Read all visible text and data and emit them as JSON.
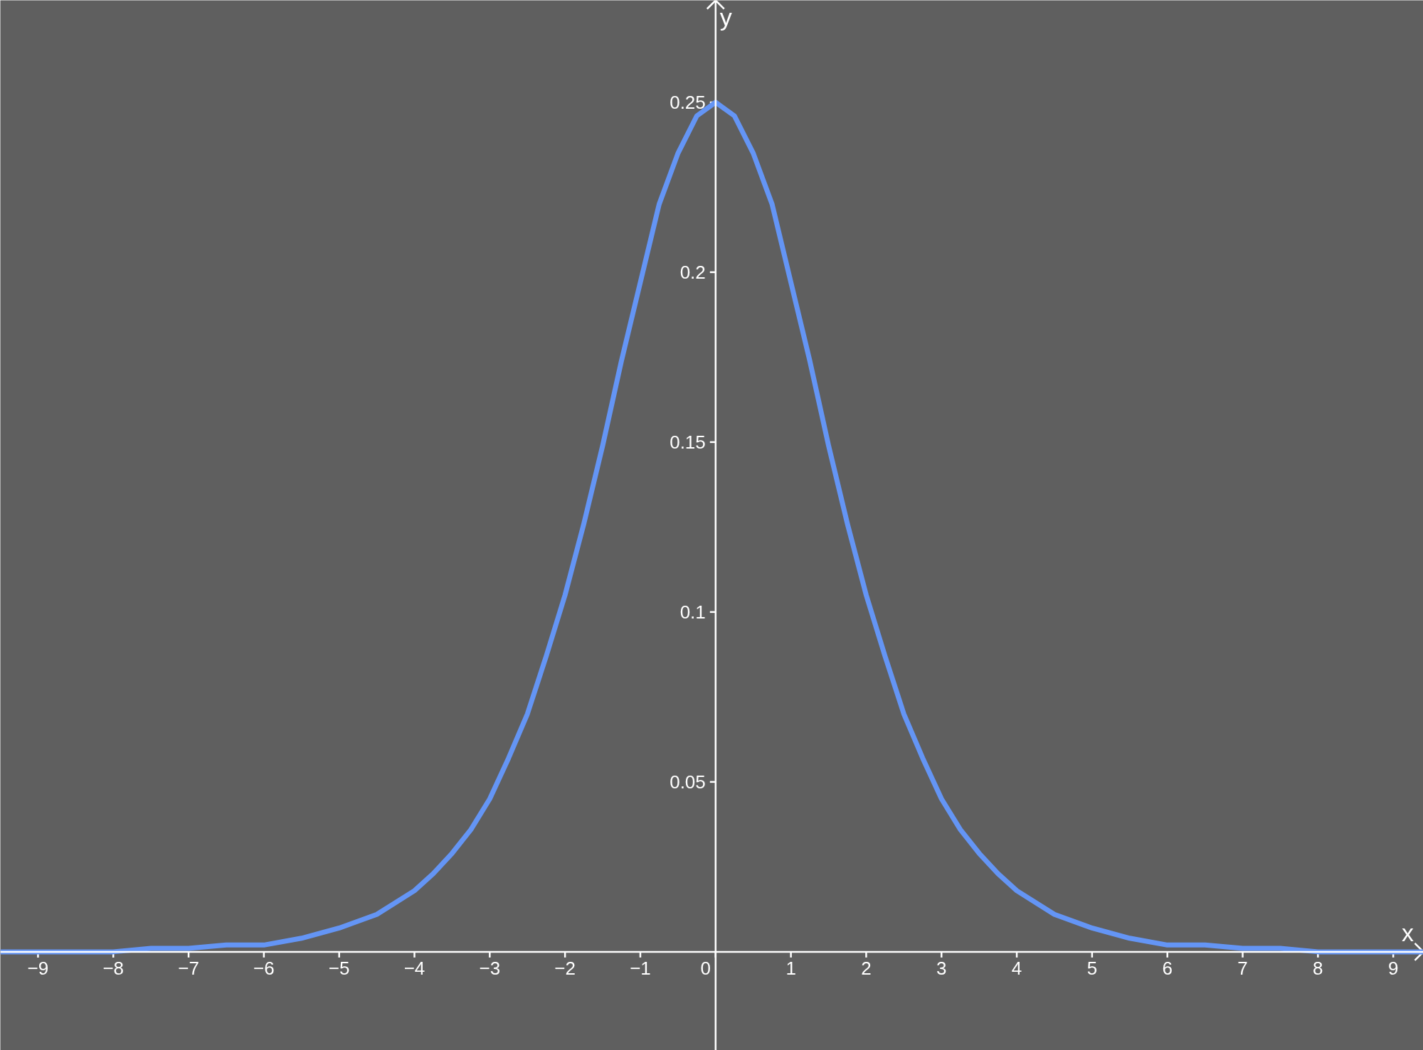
{
  "chart_data": {
    "type": "line",
    "xlabel": "x",
    "ylabel": "y",
    "x": [
      -9.5,
      -9,
      -8.5,
      -8,
      -7.5,
      -7,
      -6.5,
      -6,
      -5.5,
      -5,
      -4.5,
      -4,
      -3.75,
      -3.5,
      -3.25,
      -3,
      -2.75,
      -2.5,
      -2.25,
      -2,
      -1.75,
      -1.5,
      -1.25,
      -1,
      -0.75,
      -0.5,
      -0.25,
      0,
      0.25,
      0.5,
      0.75,
      1,
      1.25,
      1.5,
      1.75,
      2,
      2.25,
      2.5,
      2.75,
      3,
      3.25,
      3.5,
      3.75,
      4,
      4.5,
      5,
      5.5,
      6,
      6.5,
      7,
      7.5,
      8,
      8.5,
      9,
      9.4
    ],
    "series": [
      {
        "color": "#6495f5",
        "values": [
          0.0,
          0.0,
          0.0,
          0.0,
          0.001,
          0.001,
          0.002,
          0.002,
          0.004,
          0.007,
          0.011,
          0.018,
          0.023,
          0.029,
          0.036,
          0.045,
          0.057,
          0.07,
          0.087,
          0.105,
          0.126,
          0.149,
          0.174,
          0.197,
          0.22,
          0.235,
          0.246,
          0.25,
          0.246,
          0.235,
          0.22,
          0.197,
          0.174,
          0.149,
          0.126,
          0.105,
          0.087,
          0.07,
          0.057,
          0.045,
          0.036,
          0.029,
          0.023,
          0.018,
          0.011,
          0.007,
          0.004,
          0.002,
          0.002,
          0.001,
          0.001,
          0.0,
          0.0,
          0.0,
          0.0
        ]
      }
    ],
    "xlim": [
      -9.5,
      9.4
    ],
    "ylim": [
      -0.029,
      0.28
    ],
    "xticks": [
      -9,
      -8,
      -7,
      -6,
      -5,
      -4,
      -3,
      -2,
      -1,
      0,
      1,
      2,
      3,
      4,
      5,
      6,
      7,
      8,
      9
    ],
    "yticks": [
      0.05,
      0.1,
      0.15,
      0.2,
      0.25
    ],
    "grid": false,
    "marker": "none",
    "line_style": "solid"
  }
}
